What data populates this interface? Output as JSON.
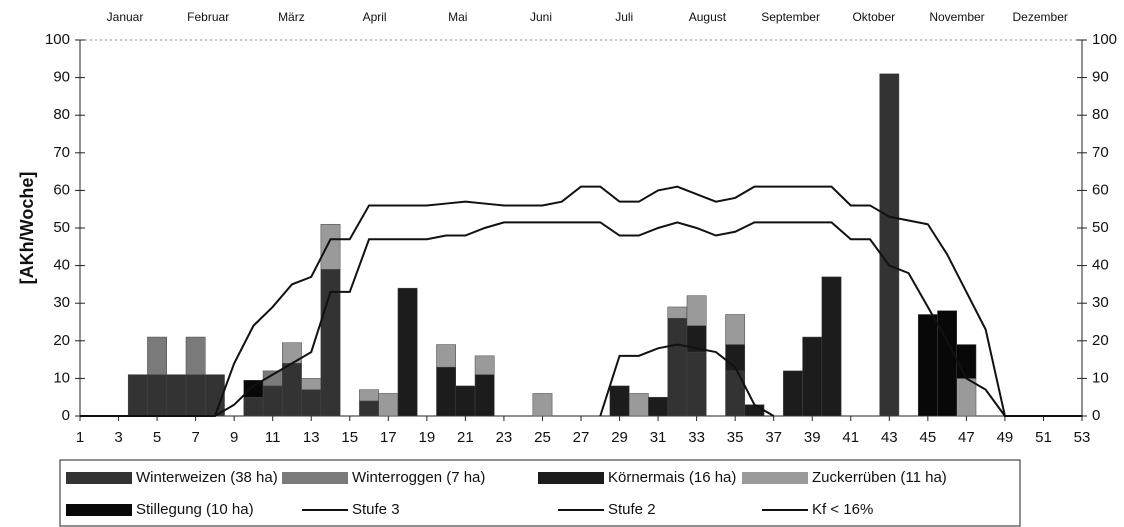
{
  "chart_data": {
    "type": "bar",
    "stacked": true,
    "y_label": "[AKh/Woche]",
    "months": [
      "Januar",
      "Februar",
      "März",
      "April",
      "Mai",
      "Juni",
      "Juli",
      "August",
      "September",
      "Oktober",
      "November",
      "Dezember"
    ],
    "x": [
      1,
      2,
      3,
      4,
      5,
      6,
      7,
      8,
      9,
      10,
      11,
      12,
      13,
      14,
      15,
      16,
      17,
      18,
      19,
      20,
      21,
      22,
      23,
      24,
      25,
      26,
      27,
      28,
      29,
      30,
      31,
      32,
      33,
      34,
      35,
      36,
      37,
      38,
      39,
      40,
      41,
      42,
      43,
      44,
      45,
      46,
      47,
      48,
      49,
      50,
      51,
      52,
      53
    ],
    "xlim": [
      1,
      53
    ],
    "xticks": [
      1,
      3,
      5,
      7,
      9,
      11,
      13,
      15,
      17,
      19,
      21,
      23,
      25,
      27,
      29,
      31,
      33,
      35,
      37,
      39,
      41,
      43,
      45,
      47,
      49,
      51,
      53
    ],
    "ylim": [
      0,
      100
    ],
    "yticks": [
      0,
      10,
      20,
      30,
      40,
      50,
      60,
      70,
      80,
      90,
      100
    ],
    "series": [
      {
        "name": "Winterweizen (38 ha)",
        "type": "bar",
        "color": "#333333",
        "values": [
          0,
          0,
          0,
          11,
          11,
          11,
          11,
          11,
          0,
          5,
          8,
          14,
          7,
          39,
          0,
          4,
          0,
          0,
          0,
          0,
          0,
          0,
          0,
          0,
          0,
          0,
          0,
          0,
          0,
          0,
          0,
          26,
          17,
          0,
          12,
          0,
          0,
          0,
          0,
          0,
          0,
          0,
          91,
          0,
          0,
          0,
          0,
          0,
          0,
          0,
          0,
          0,
          0
        ]
      },
      {
        "name": "Winterroggen (7 ha)",
        "type": "bar",
        "color": "#7a7a7a",
        "values": [
          0,
          0,
          0,
          0,
          10,
          0,
          10,
          0,
          0,
          0,
          4,
          0,
          0,
          0,
          0,
          0,
          0,
          0,
          0,
          0,
          0,
          0,
          0,
          0,
          0,
          0,
          0,
          0,
          0,
          0,
          0,
          0,
          0,
          0,
          0,
          0,
          0,
          0,
          0,
          0,
          0,
          0,
          0,
          0,
          0,
          0,
          0,
          0,
          0,
          0,
          0,
          0,
          0
        ]
      },
      {
        "name": "Körnermais (16 ha)",
        "type": "bar",
        "color": "#1c1c1c",
        "values": [
          0,
          0,
          0,
          0,
          0,
          0,
          0,
          0,
          0,
          0,
          0,
          0,
          0,
          0,
          0,
          0,
          0,
          34,
          0,
          13,
          8,
          11,
          0,
          0,
          0,
          0,
          0,
          0,
          8,
          0,
          5,
          0,
          7,
          0,
          7,
          3,
          0,
          12,
          21,
          37,
          0,
          0,
          0,
          0,
          0,
          0,
          0,
          0,
          0,
          0,
          0,
          0,
          0
        ]
      },
      {
        "name": "Zuckerrüben (11 ha)",
        "type": "bar",
        "color": "#9a9a9a",
        "values": [
          0,
          0,
          0,
          0,
          0,
          0,
          0,
          0,
          0,
          0,
          0,
          5.5,
          3,
          12,
          0,
          3,
          6,
          0,
          0,
          6,
          0,
          5,
          0,
          0,
          6,
          0,
          0,
          0,
          0,
          6,
          0,
          3,
          8,
          0,
          8,
          0,
          0,
          0,
          0,
          0,
          0,
          0,
          0,
          0,
          0,
          0,
          10,
          0,
          0,
          0,
          0,
          0,
          0
        ]
      },
      {
        "name": "Stillegung (10 ha)",
        "type": "bar",
        "color": "#080808",
        "values": [
          0,
          0,
          0,
          0,
          0,
          0,
          0,
          0,
          0,
          4.5,
          0,
          0,
          0,
          0,
          0,
          0,
          0,
          0,
          0,
          0,
          0,
          0,
          0,
          0,
          0,
          0,
          0,
          0,
          0,
          0,
          0,
          0,
          0,
          0,
          0,
          0,
          0,
          0,
          0,
          0,
          0,
          0,
          0,
          0,
          27,
          28,
          9,
          0,
          0,
          0,
          0,
          0,
          0
        ]
      },
      {
        "name": "Stufe 3",
        "type": "line",
        "color": "#111111",
        "values": [
          0,
          0,
          0,
          0,
          0,
          0,
          0,
          0,
          14,
          24,
          29,
          35,
          37,
          47,
          47,
          56,
          56,
          56,
          56,
          56.5,
          57,
          56.5,
          56,
          56,
          56,
          57,
          61,
          61,
          57,
          57,
          60,
          61,
          59,
          57,
          58,
          61,
          61,
          61,
          61,
          61,
          56,
          56,
          53,
          52,
          51,
          43,
          33,
          23,
          0,
          0,
          0,
          0,
          0
        ]
      },
      {
        "name": "Stufe 2",
        "type": "line",
        "color": "#111111",
        "values": [
          null,
          null,
          null,
          null,
          null,
          null,
          null,
          0,
          3,
          8,
          11,
          14,
          17,
          33,
          33,
          47,
          47,
          47,
          47,
          48,
          48,
          50,
          51.5,
          51.5,
          51.5,
          51.5,
          51.5,
          51.5,
          48,
          48,
          50,
          51.5,
          50,
          48,
          49,
          51.5,
          51.5,
          51.5,
          51.5,
          51.5,
          47,
          47,
          40,
          38,
          29,
          20,
          10,
          7,
          0,
          null,
          null,
          null,
          null
        ]
      },
      {
        "name": "Kf < 16%",
        "type": "line",
        "color": "#111111",
        "values": [
          null,
          null,
          null,
          null,
          null,
          null,
          null,
          null,
          null,
          null,
          null,
          null,
          null,
          null,
          null,
          null,
          null,
          null,
          null,
          null,
          null,
          null,
          null,
          null,
          null,
          null,
          null,
          0,
          16,
          16,
          18,
          19,
          18,
          17,
          13,
          3,
          0,
          null,
          null,
          null,
          null,
          null,
          null,
          null,
          null,
          null,
          null,
          null,
          null,
          null,
          null,
          null,
          null
        ]
      }
    ]
  }
}
